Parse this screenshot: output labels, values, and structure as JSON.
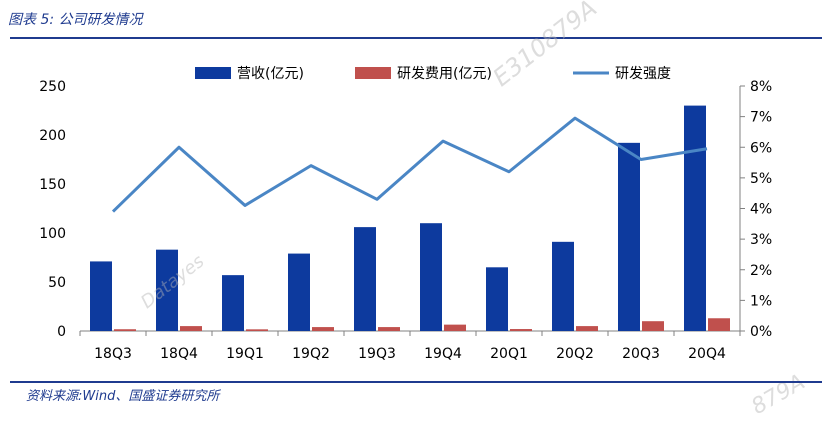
{
  "figure": {
    "title": "图表 5:  公司研发情况",
    "source": "资料来源:Wind、国盛证券研究所"
  },
  "watermarks": [
    "E310879A",
    "Datayes",
    "879A"
  ],
  "chart_data": {
    "type": "bar",
    "categories": [
      "18Q3",
      "18Q4",
      "19Q1",
      "19Q2",
      "19Q3",
      "19Q4",
      "20Q1",
      "20Q2",
      "20Q3",
      "20Q4"
    ],
    "series": [
      {
        "name": "营收(亿元)",
        "type": "bar",
        "axis": "left",
        "color": "#0d3a9e",
        "values": [
          71,
          83,
          57,
          79,
          106,
          110,
          65,
          91,
          192,
          230
        ]
      },
      {
        "name": "研发费用(亿元)",
        "type": "bar",
        "axis": "left",
        "color": "#c0504d",
        "values": [
          1.8,
          5,
          1.7,
          4,
          4,
          6.5,
          2,
          5,
          10,
          13
        ]
      },
      {
        "name": "研发强度",
        "type": "line",
        "axis": "right",
        "color": "#4a86c5",
        "values": [
          3.9,
          6.0,
          4.1,
          5.4,
          4.3,
          6.2,
          5.2,
          6.95,
          5.6,
          5.95
        ]
      }
    ],
    "yleft": {
      "lim": [
        0,
        250
      ],
      "ticks": [
        "0",
        "50",
        "100",
        "150",
        "200",
        "250"
      ]
    },
    "yright": {
      "lim": [
        0,
        8
      ],
      "ticks": [
        "0%",
        "1%",
        "2%",
        "3%",
        "4%",
        "5%",
        "6%",
        "7%",
        "8%"
      ]
    },
    "legend_position": "top",
    "grid": false
  }
}
